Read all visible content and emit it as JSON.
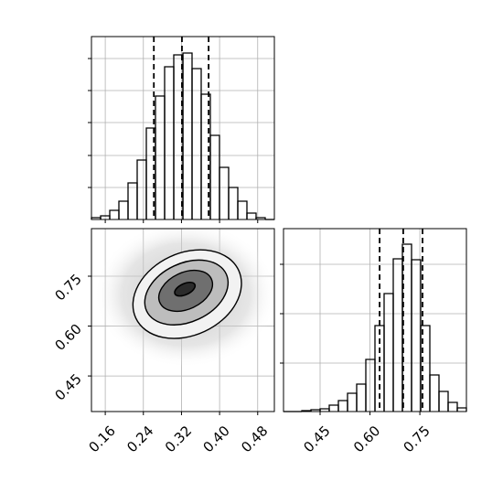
{
  "chart_data": [
    {
      "type": "histogram",
      "bins": [
        0.131,
        0.1502,
        0.1694,
        0.1886,
        0.2078,
        0.227,
        0.2462,
        0.2654,
        0.2846,
        0.3038,
        0.323,
        0.3422,
        0.3614,
        0.3806,
        0.3998,
        0.419,
        0.4382,
        0.4574,
        0.4766,
        0.4958,
        0.515
      ],
      "values": [
        2,
        4,
        10,
        20,
        40,
        65,
        100,
        135,
        167,
        180,
        182,
        165,
        137,
        92,
        57,
        35,
        20,
        7,
        2,
        0
      ],
      "xlim": [
        0.131,
        0.515
      ],
      "ylim": [
        0,
        200
      ],
      "yticks": [
        35,
        70,
        106,
        141,
        176
      ],
      "quantiles": [
        0.262,
        0.321,
        0.377
      ],
      "color": "#000000",
      "grid": true
    },
    {
      "type": "hist2d",
      "xlim": [
        0.131,
        0.515
      ],
      "ylim": [
        0.343,
        0.893
      ],
      "xticks": [
        0.16,
        0.24,
        0.32,
        {
          "value": 0.4,
          "label": "0.40"
        },
        0.48
      ],
      "yticks": [
        0.45,
        {
          "value": 0.6,
          "label": "0.60"
        },
        0.75
      ],
      "grid": true
    },
    {
      "type": "histogram",
      "bins": [
        0.34,
        0.3675,
        0.395,
        0.4225,
        0.45,
        0.4775,
        0.505,
        0.5325,
        0.56,
        0.5875,
        0.615,
        0.6425,
        0.67,
        0.6975,
        0.725,
        0.7525,
        0.78,
        0.8075,
        0.835,
        0.8625,
        0.89
      ],
      "values": [
        0,
        0,
        1,
        2,
        3,
        7,
        12,
        20,
        30,
        57,
        94,
        129,
        167,
        183,
        166,
        94,
        40,
        22,
        10,
        4
      ],
      "xlim": [
        0.34,
        0.89
      ],
      "ylim": [
        0,
        200
      ],
      "xticks": [
        0.45,
        {
          "value": 0.6,
          "label": "0.60"
        },
        0.75
      ],
      "yticks": [
        53,
        107,
        161
      ],
      "quantiles": [
        0.629,
        0.7,
        0.758
      ],
      "color": "#000000",
      "grid": true
    }
  ]
}
